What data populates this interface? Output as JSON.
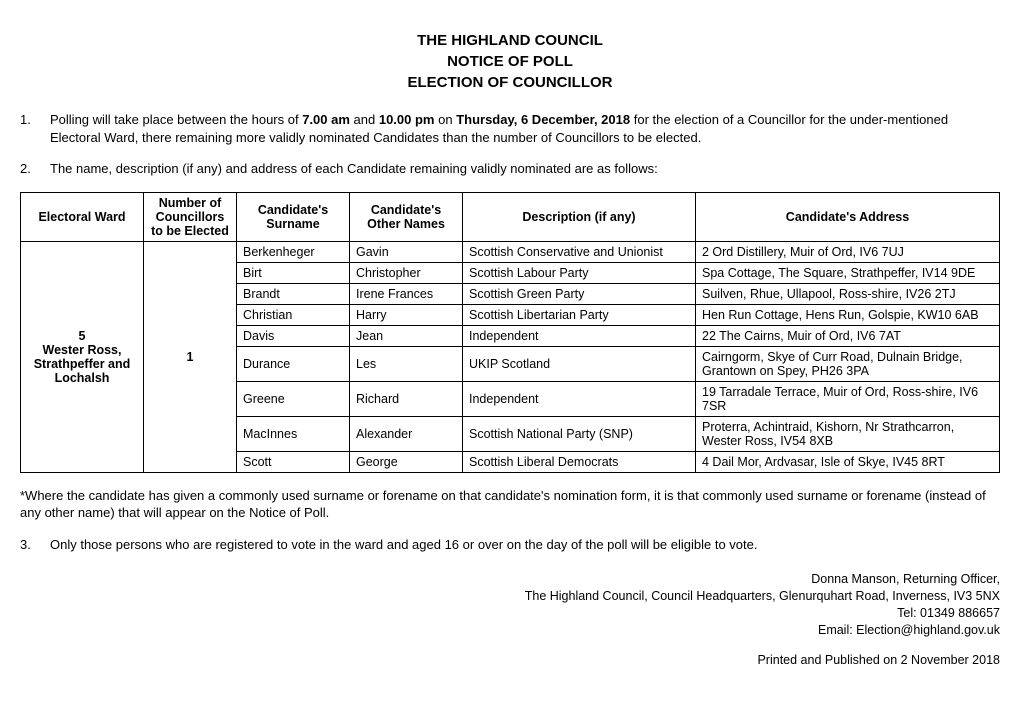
{
  "title": {
    "line1": "THE HIGHLAND COUNCIL",
    "line2": "NOTICE OF POLL",
    "line3": "ELECTION OF COUNCILLOR"
  },
  "para1": {
    "num": "1.",
    "pre": "Polling will take place between the hours of ",
    "time1": "7.00 am",
    "mid1": " and ",
    "time2": "10.00 pm",
    "mid2": " on ",
    "date": "Thursday, 6 December, 2018",
    "post": " for the election of a Councillor for the under-mentioned Electoral Ward, there remaining more validly nominated Candidates than the number of Councillors to be elected."
  },
  "para2": {
    "num": "2.",
    "text": "The name, description (if any) and address of each Candidate remaining validly nominated are as follows:"
  },
  "table": {
    "headers": {
      "ward": "Electoral Ward",
      "num": "Number of Councillors to be Elected",
      "surname": "Candidate's Surname",
      "other": "Candidate's Other Names",
      "desc": "Description (if any)",
      "addr": "Candidate's Address"
    },
    "ward": "5\nWester Ross, Strathpeffer and Lochalsh",
    "councillors": "1",
    "rows": [
      {
        "surname": "Berkenheger",
        "other": "Gavin",
        "desc": "Scottish Conservative and Unionist",
        "addr": "2 Ord Distillery, Muir of Ord, IV6 7UJ"
      },
      {
        "surname": "Birt",
        "other": "Christopher",
        "desc": "Scottish Labour Party",
        "addr": "Spa Cottage, The Square, Strathpeffer, IV14 9DE"
      },
      {
        "surname": "Brandt",
        "other": "Irene Frances",
        "desc": "Scottish Green Party",
        "addr": "Suilven, Rhue, Ullapool, Ross-shire, IV26 2TJ"
      },
      {
        "surname": "Christian",
        "other": "Harry",
        "desc": "Scottish Libertarian Party",
        "addr": "Hen Run Cottage, Hens Run, Golspie, KW10 6AB"
      },
      {
        "surname": "Davis",
        "other": "Jean",
        "desc": "Independent",
        "addr": "22 The Cairns, Muir of Ord, IV6 7AT"
      },
      {
        "surname": "Durance",
        "other": "Les",
        "desc": "UKIP Scotland",
        "addr": "Cairngorm, Skye of Curr Road, Dulnain Bridge, Grantown on Spey, PH26 3PA"
      },
      {
        "surname": "Greene",
        "other": "Richard",
        "desc": "Independent",
        "addr": "19 Tarradale Terrace, Muir of Ord, Ross-shire, IV6 7SR"
      },
      {
        "surname": "MacInnes",
        "other": "Alexander",
        "desc": "Scottish National Party (SNP)",
        "addr": "Proterra, Achintraid, Kishorn, Nr Strathcarron, Wester Ross, IV54 8XB"
      },
      {
        "surname": "Scott",
        "other": "George",
        "desc": "Scottish Liberal Democrats",
        "addr": "4 Dail Mor, Ardvasar, Isle of Skye, IV45 8RT"
      }
    ]
  },
  "footnote": "*Where the candidate has given a commonly used surname or forename on that candidate's nomination form, it is that commonly used surname or forename (instead of any other name) that will appear on the Notice of Poll.",
  "para3": {
    "num": "3.",
    "text": "Only those persons who are registered to vote in the ward and aged 16 or over on the day of the poll will be eligible to vote."
  },
  "signoff": {
    "l1": "Donna Manson, Returning Officer,",
    "l2": "The Highland Council, Council Headquarters, Glenurquhart Road, Inverness, IV3 5NX",
    "l3": "Tel: 01349 886657",
    "l4": "Email: Election@highland.gov.uk"
  },
  "printed": "Printed and Published on 2 November 2018"
}
